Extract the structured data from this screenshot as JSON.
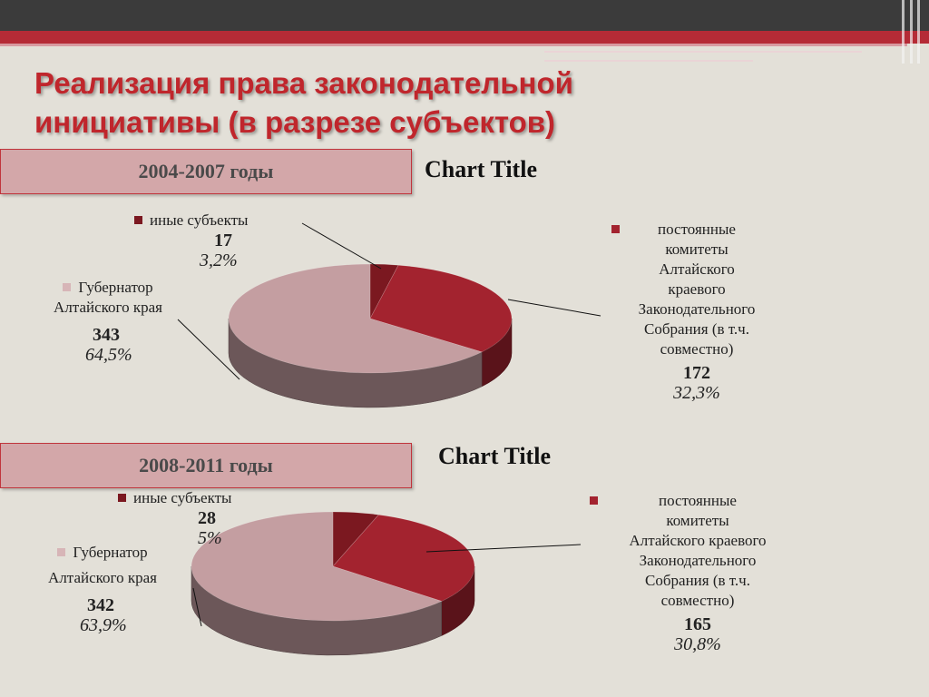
{
  "slide": {
    "title": "Реализация права законодательной инициативы (в разрезе субъектов)"
  },
  "chart_data": [
    {
      "type": "pie",
      "period": "2004-2007 годы",
      "title": "Chart Title",
      "slices": [
        {
          "name": "иные субъекты",
          "value": 17,
          "percent": "3,2%",
          "color": "#7b1820"
        },
        {
          "name": "постоянные комитеты Алтайского краевого Законодательного Собрания (в т.ч. совместно)",
          "value": 172,
          "percent": "32,3%",
          "color": "#a3232f"
        },
        {
          "name": "Губернатор Алтайского края",
          "value": 343,
          "percent": "64,5%",
          "color": "#c49ea1"
        }
      ]
    },
    {
      "type": "pie",
      "period": "2008-2011 годы",
      "title": "Chart Title",
      "slices": [
        {
          "name": "иные субъекты",
          "value": 28,
          "percent": "5%",
          "color": "#7b1820"
        },
        {
          "name": "постоянные комитеты Алтайского краевого Законодательного Собрания (в т.ч. совместно)",
          "value": 165,
          "percent": "30,8%",
          "color": "#a3232f"
        },
        {
          "name": "Губернатор Алтайского края",
          "value": 342,
          "percent": "63,9%",
          "color": "#c49ea1"
        }
      ]
    }
  ],
  "labels1": {
    "other_name": "иные субъекты",
    "other_value": "17",
    "other_pct": "3,2%",
    "comm_l1": "постоянные",
    "comm_l2": "комитеты",
    "comm_l3": "Алтайского",
    "comm_l4": "краевого",
    "comm_l5": "Законодательного",
    "comm_l6": "Собрания (в т.ч.",
    "comm_l7": "совместно)",
    "comm_value": "172",
    "comm_pct": "32,3%",
    "gov_l1": "Губернатор",
    "gov_l2": "Алтайского края",
    "gov_value": "343",
    "gov_pct": "64,5%"
  },
  "labels2": {
    "other_name": "иные субъекты",
    "other_value": "28",
    "other_pct": "5%",
    "comm_l1": "постоянные",
    "comm_l2": "комитеты",
    "comm_l3": "Алтайского краевого",
    "comm_l4": "Законодательного",
    "comm_l5": "Собрания (в т.ч.",
    "comm_l6": "совместно)",
    "comm_value": "165",
    "comm_pct": "30,8%",
    "gov_l1": "Губернатор",
    "gov_l2": "Алтайского края",
    "gov_value": "342",
    "gov_pct": "63,9%"
  }
}
